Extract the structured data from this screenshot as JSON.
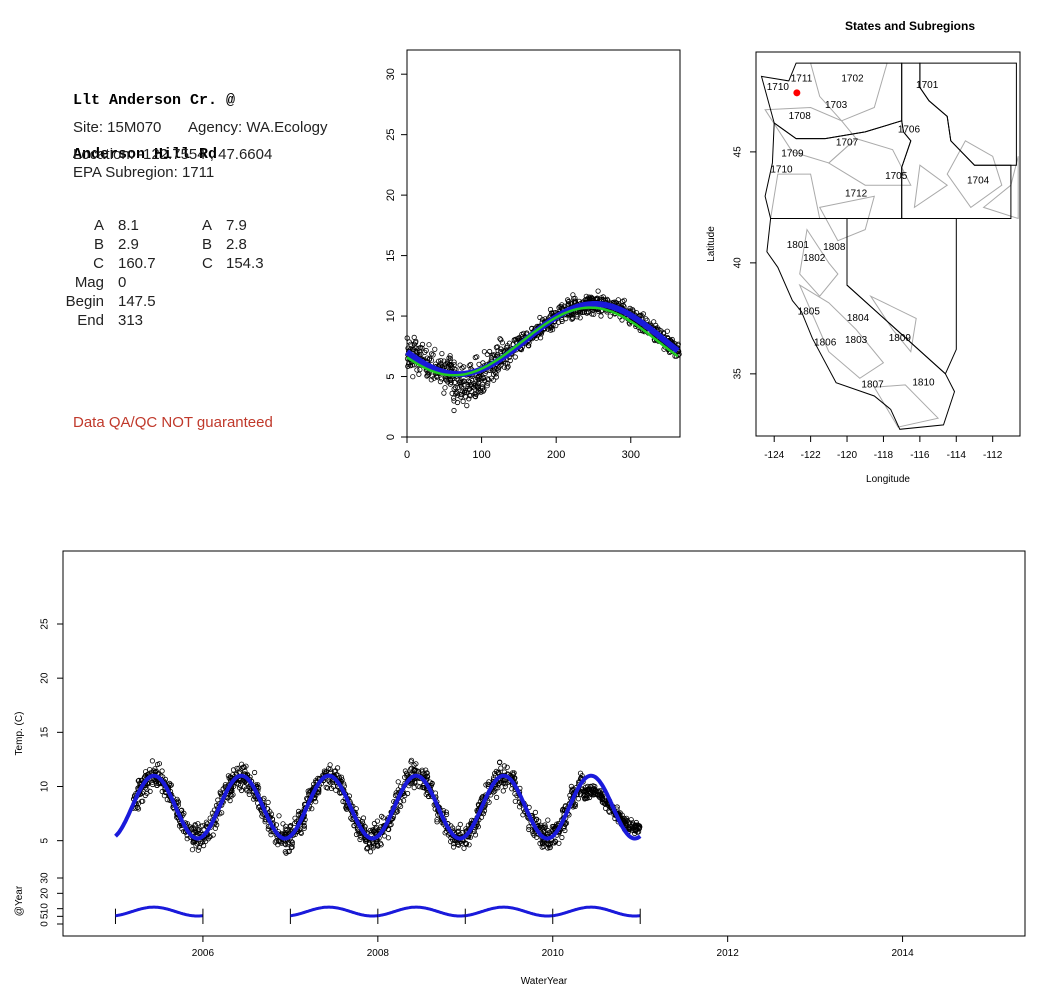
{
  "site": {
    "title_line1": "Llt Anderson Cr. @",
    "title_line2": "Anderson Hill Rd",
    "site_label": "Site: 15M070",
    "agency_label": "Agency: WA.Ecology",
    "location_label": "Location: -122.7554 , 47.6604",
    "subregion_label": "EPA Subregion: 1711",
    "qa_note": "Data QA/QC NOT guaranteed"
  },
  "params": {
    "rows": [
      {
        "label": "A",
        "val1": "8.1",
        "label2": "A",
        "val2": "7.9"
      },
      {
        "label": "B",
        "val1": "2.9",
        "label2": "B",
        "val2": "2.8"
      },
      {
        "label": "C",
        "val1": "160.7",
        "label2": "C",
        "val2": "154.3"
      },
      {
        "label": "Mag",
        "val1": "0",
        "label2": "",
        "val2": ""
      },
      {
        "label": "Begin",
        "val1": "147.5",
        "label2": "",
        "val2": ""
      },
      {
        "label": "End",
        "val1": "313",
        "label2": "",
        "val2": ""
      }
    ]
  },
  "chart_data": [
    {
      "type": "scatter",
      "xlim": [
        0,
        366
      ],
      "ylim": [
        0,
        32
      ],
      "xticks": [
        0,
        100,
        200,
        300
      ],
      "yticks": [
        0,
        5,
        10,
        15,
        20,
        25,
        30
      ],
      "fits": [
        {
          "name": "",
          "color": "#1a1adb",
          "A": 8.1,
          "B": 2.9,
          "C": 160.7
        },
        {
          "name": "",
          "color": "#22cc22",
          "A": 7.9,
          "B": 2.8,
          "C": 154.3
        }
      ],
      "point_color": "#000000",
      "point_count": 900
    },
    {
      "type": "map",
      "title": "States and Subregions",
      "xlabel": "Longitude",
      "ylabel": "Latitude",
      "xlim": [
        -125,
        -110.5
      ],
      "ylim": [
        32.2,
        49.5
      ],
      "xticks": [
        -124,
        -122,
        -120,
        -118,
        -116,
        -114,
        -112
      ],
      "yticks": [
        35,
        40,
        45
      ],
      "site": {
        "lon": -122.7554,
        "lat": 47.6604,
        "color": "#ff0000"
      },
      "subregions": [
        {
          "code": "1711",
          "lon": -122.5,
          "lat": 48.3
        },
        {
          "code": "1702",
          "lon": -119.7,
          "lat": 48.3
        },
        {
          "code": "1701",
          "lon": -115.6,
          "lat": 48.0
        },
        {
          "code": "1710",
          "lon": -123.8,
          "lat": 47.9
        },
        {
          "code": "1703",
          "lon": -120.6,
          "lat": 47.1
        },
        {
          "code": "1708",
          "lon": -122.6,
          "lat": 46.6
        },
        {
          "code": "1706",
          "lon": -116.6,
          "lat": 46.0
        },
        {
          "code": "1707",
          "lon": -120.0,
          "lat": 45.4
        },
        {
          "code": "1709",
          "lon": -123.0,
          "lat": 44.9
        },
        {
          "code": "1710",
          "lon": -123.6,
          "lat": 44.2
        },
        {
          "code": "1705",
          "lon": -117.3,
          "lat": 43.9
        },
        {
          "code": "1704",
          "lon": -112.8,
          "lat": 43.7
        },
        {
          "code": "1712",
          "lon": -119.5,
          "lat": 43.1
        },
        {
          "code": "1801",
          "lon": -122.7,
          "lat": 40.8
        },
        {
          "code": "1808",
          "lon": -120.7,
          "lat": 40.7
        },
        {
          "code": "1802",
          "lon": -121.8,
          "lat": 40.2
        },
        {
          "code": "1805",
          "lon": -122.1,
          "lat": 37.8
        },
        {
          "code": "1804",
          "lon": -119.4,
          "lat": 37.5
        },
        {
          "code": "1806",
          "lon": -121.2,
          "lat": 36.4
        },
        {
          "code": "1803",
          "lon": -119.5,
          "lat": 36.5
        },
        {
          "code": "1809",
          "lon": -117.1,
          "lat": 36.6
        },
        {
          "code": "1810",
          "lon": -115.8,
          "lat": 34.6
        },
        {
          "code": "1807",
          "lon": -118.6,
          "lat": 34.5
        }
      ]
    },
    {
      "type": "scatter",
      "xlabel": "WaterYear",
      "ylabel": "Temp. (C)",
      "ylabel_bottom": "@Year",
      "xlim": [
        2004.4,
        2015.4
      ],
      "ylim": [
        1,
        31
      ],
      "xticks": [
        2006,
        2008,
        2010,
        2012,
        2014
      ],
      "yticks": [
        5,
        10,
        15,
        20,
        25
      ],
      "yticks_bottom": [
        0,
        5,
        10,
        20,
        30
      ],
      "series": [
        {
          "name": "",
          "color": "#1a1adb",
          "x": [
            2005.0,
            2011.0
          ]
        },
        {
          "name": "",
          "color": "#000000",
          "x": [
            2005.2,
            2011.0
          ]
        }
      ],
      "year_markers": [
        2005,
        2006,
        2007,
        2008,
        2009,
        2010,
        2011
      ]
    }
  ]
}
